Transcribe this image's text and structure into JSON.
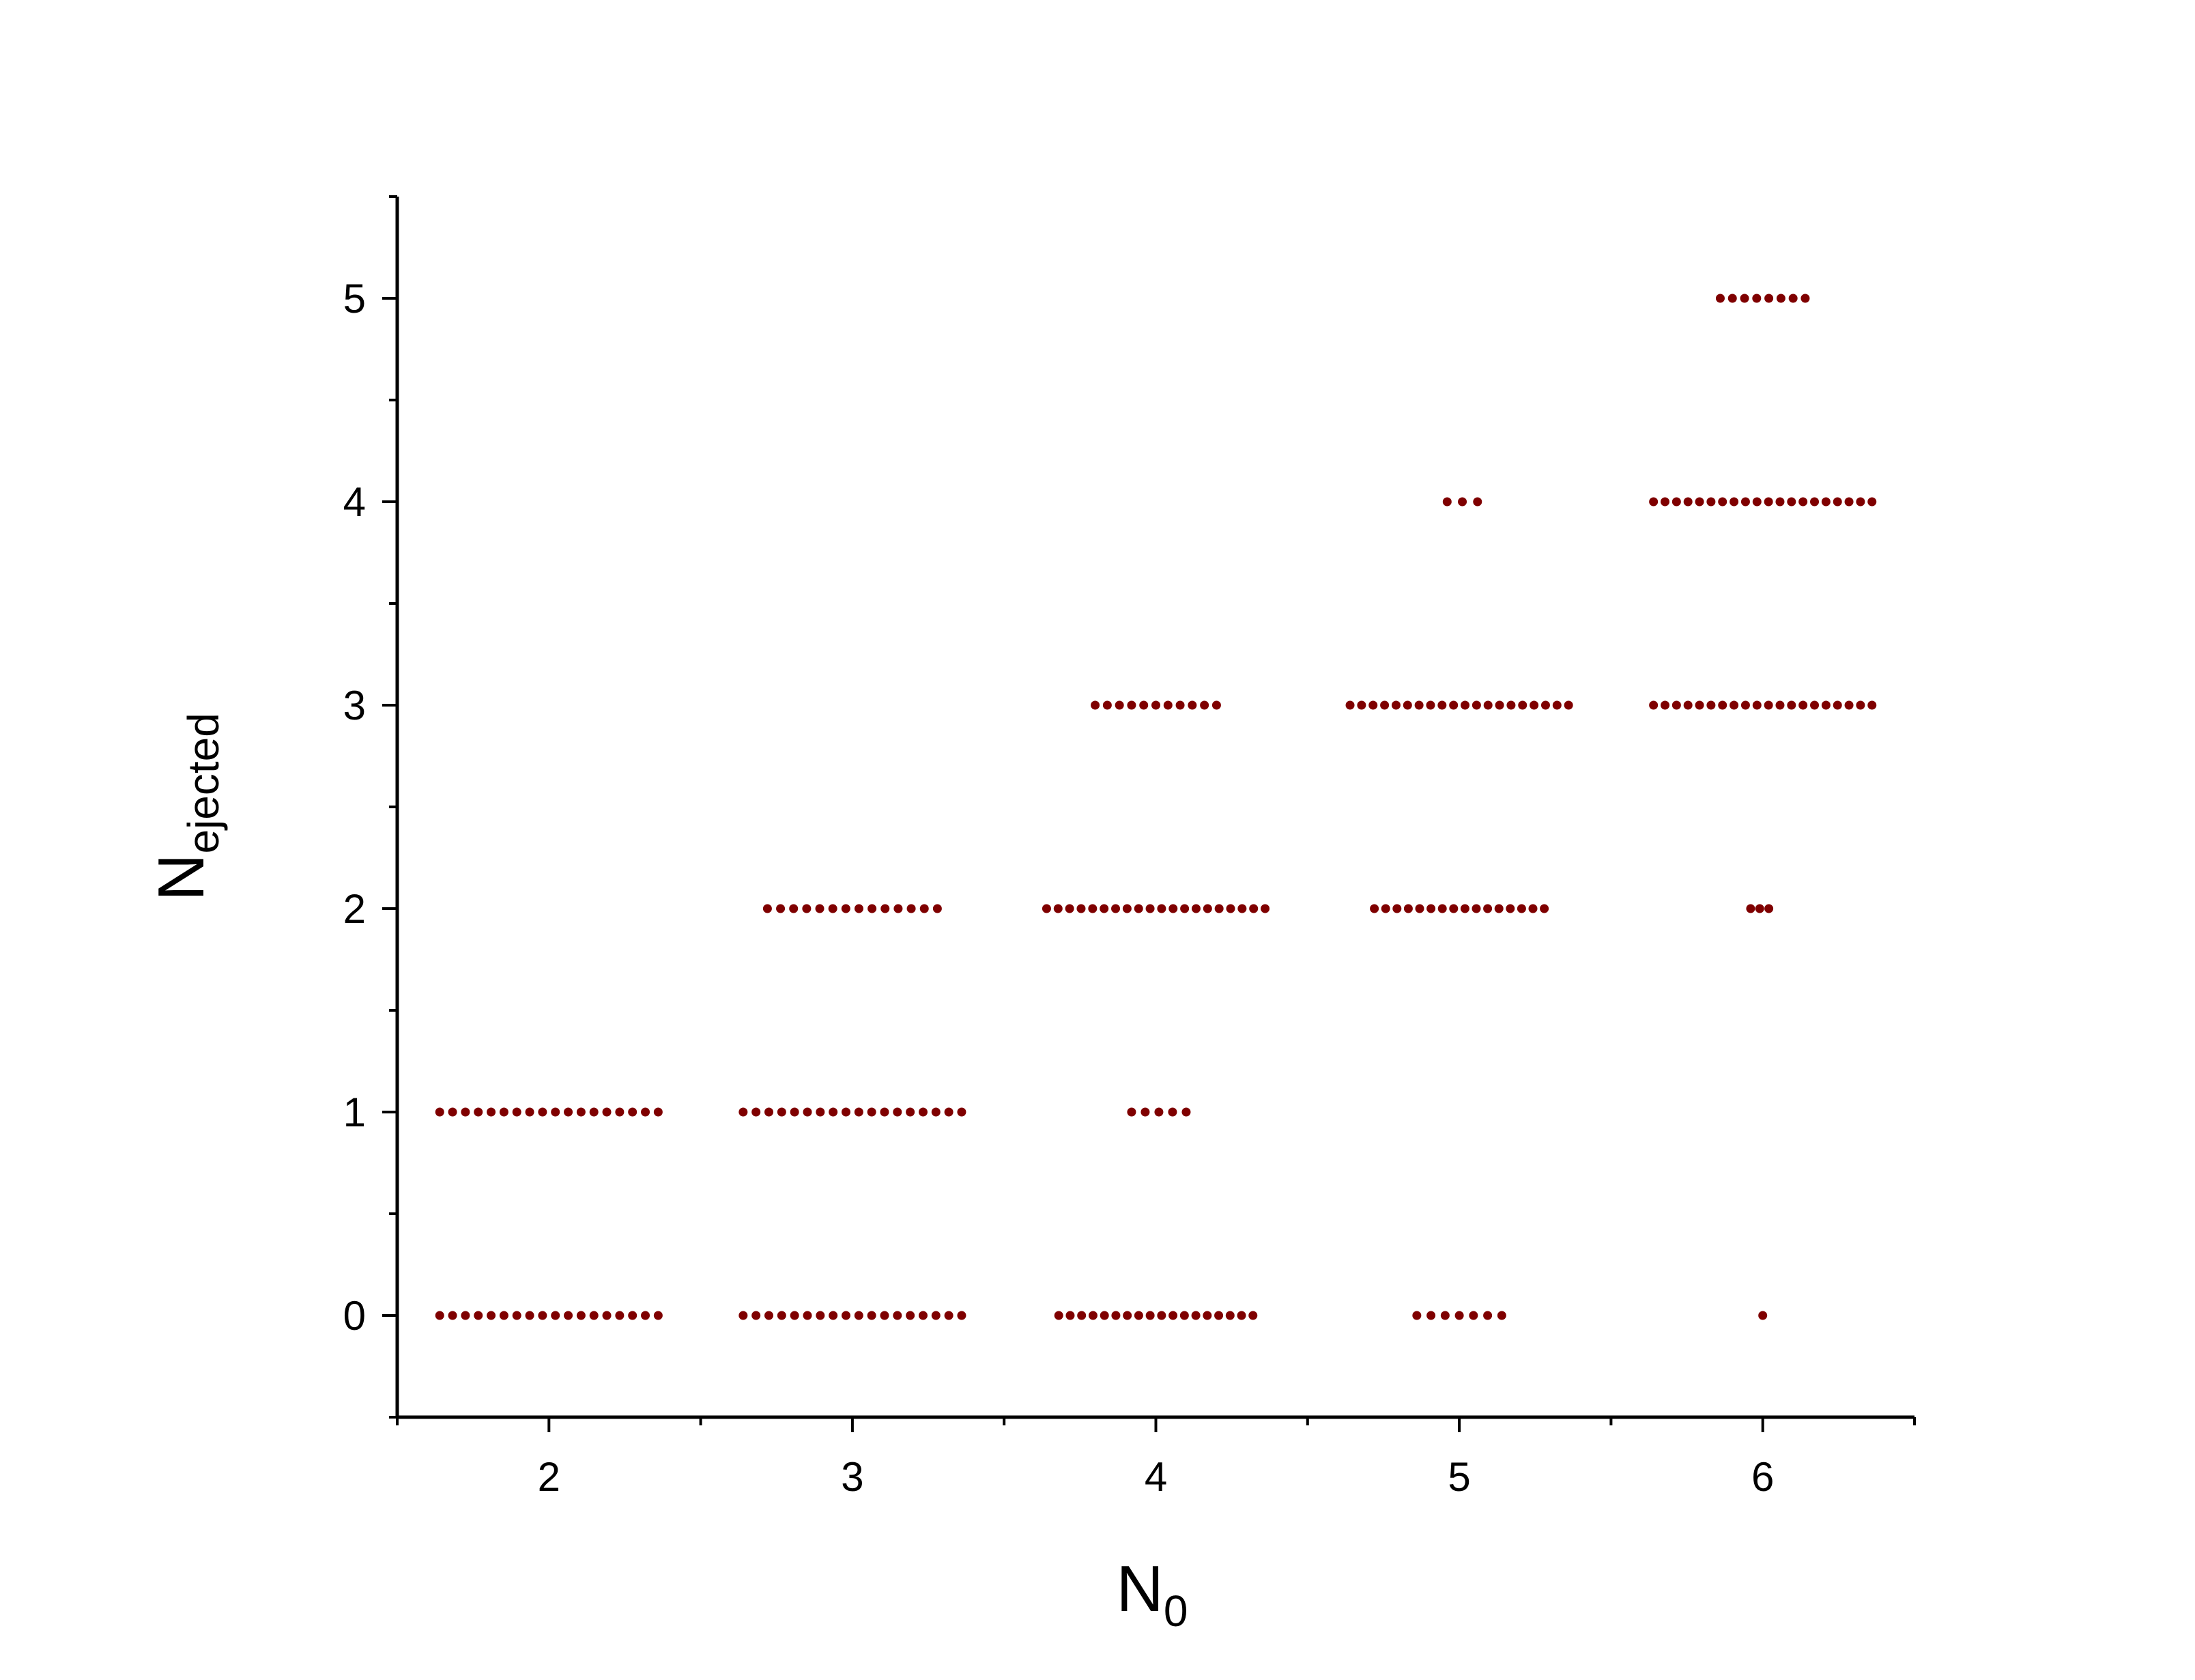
{
  "chart_data": {
    "type": "scatter",
    "marker_color": "#7f0000",
    "xlabel": {
      "main": "N",
      "sub": "0"
    },
    "ylabel": {
      "main": "N",
      "sub": "ejected"
    },
    "xlim": [
      1.5,
      6.5
    ],
    "ylim": [
      -0.5,
      5.5
    ],
    "x_ticks": [
      2,
      3,
      4,
      5,
      6
    ],
    "y_ticks": [
      0,
      1,
      2,
      3,
      4,
      5
    ],
    "x_tick_labels": [
      "2",
      "3",
      "4",
      "5",
      "6"
    ],
    "y_tick_labels": [
      "0",
      "1",
      "2",
      "3",
      "4",
      "5"
    ],
    "grid": false,
    "groups": [
      {
        "x": 2,
        "y": 1,
        "count": 18,
        "spread": [
          1.64,
          2.36
        ]
      },
      {
        "x": 2,
        "y": 0,
        "count": 18,
        "spread": [
          1.64,
          2.36
        ]
      },
      {
        "x": 3,
        "y": 2,
        "count": 14,
        "spread": [
          2.72,
          3.28
        ]
      },
      {
        "x": 3,
        "y": 1,
        "count": 18,
        "spread": [
          2.64,
          3.36
        ]
      },
      {
        "x": 3,
        "y": 0,
        "count": 18,
        "spread": [
          2.64,
          3.36
        ]
      },
      {
        "x": 4,
        "y": 3,
        "count": 11,
        "spread": [
          3.8,
          4.2
        ]
      },
      {
        "x": 4,
        "y": 2,
        "count": 20,
        "spread": [
          3.64,
          4.36
        ]
      },
      {
        "x": 4,
        "y": 1,
        "count": 5,
        "spread": [
          3.92,
          4.1
        ]
      },
      {
        "x": 4,
        "y": 0,
        "count": 18,
        "spread": [
          3.68,
          4.32
        ]
      },
      {
        "x": 5,
        "y": 4,
        "count": 3,
        "spread": [
          4.96,
          5.06
        ]
      },
      {
        "x": 5,
        "y": 3,
        "count": 20,
        "spread": [
          4.64,
          5.36
        ]
      },
      {
        "x": 5,
        "y": 2,
        "count": 16,
        "spread": [
          4.72,
          5.28
        ]
      },
      {
        "x": 5,
        "y": 0,
        "count": 7,
        "spread": [
          4.86,
          5.14
        ]
      },
      {
        "x": 6,
        "y": 5,
        "count": 8,
        "spread": [
          5.86,
          6.14
        ]
      },
      {
        "x": 6,
        "y": 4,
        "count": 20,
        "spread": [
          5.64,
          6.36
        ]
      },
      {
        "x": 6,
        "y": 3,
        "count": 20,
        "spread": [
          5.64,
          6.36
        ]
      },
      {
        "x": 6,
        "y": 2,
        "count": 3,
        "spread": [
          5.96,
          6.02
        ]
      },
      {
        "x": 6,
        "y": 0,
        "count": 1,
        "spread": [
          6.0,
          6.0
        ]
      }
    ]
  }
}
